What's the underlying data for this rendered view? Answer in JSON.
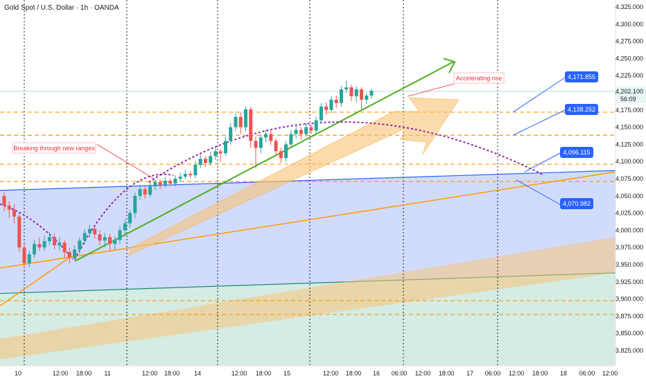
{
  "header": {
    "title": "Gold Spot / U.S. Dollar · 1h · OANDA"
  },
  "colors": {
    "up": "#26a69a",
    "down": "#ef5350",
    "blue_zone": "#c9d6fb",
    "green_zone": "#d5ece4",
    "trend_green": "#4caf1e",
    "orange": "#ff9800",
    "arc": "#8e24aa",
    "label_blue": "#2962ff",
    "annotation_red": "#e8323c"
  },
  "chart_data": {
    "type": "candlestick",
    "title": "Gold Spot / U.S. Dollar · 1h · OANDA",
    "ylim": [
      3805,
      4335
    ],
    "y_ticks": [
      "4,325.000",
      "4,300.000",
      "4,275.000",
      "4,250.000",
      "4,225.000",
      "4,200.000",
      "4,175.000",
      "4,150.000",
      "4,125.000",
      "4,100.000",
      "4,075.000",
      "4,050.000",
      "4,025.000",
      "4,000.000",
      "3,975.000",
      "3,950.000",
      "3,925.000",
      "3,900.000",
      "3,875.000",
      "3,850.000",
      "3,825.000"
    ],
    "x_ticks": [
      "10",
      "12:00",
      "18:00",
      "11",
      "12:00",
      "18:00",
      "14",
      "12:00",
      "18:00",
      "15",
      "12:00",
      "18:00",
      "16",
      "06:00",
      "12:00",
      "18:00",
      "17",
      "06:00",
      "12:00",
      "18:00",
      "18",
      "06:00",
      "12:00"
    ],
    "current_price": {
      "value": "4,202.100",
      "countdown": "56:09"
    },
    "candles": [
      {
        "o": 4050,
        "c": 4036,
        "h": 4056,
        "l": 4028
      },
      {
        "o": 4036,
        "c": 4030,
        "h": 4042,
        "l": 4018
      },
      {
        "o": 4030,
        "c": 4020,
        "h": 4038,
        "l": 4010
      },
      {
        "o": 4020,
        "c": 3975,
        "h": 4024,
        "l": 3968
      },
      {
        "o": 3975,
        "c": 3952,
        "h": 3980,
        "l": 3944
      },
      {
        "o": 3952,
        "c": 3965,
        "h": 3970,
        "l": 3946
      },
      {
        "o": 3965,
        "c": 3980,
        "h": 3986,
        "l": 3960
      },
      {
        "o": 3980,
        "c": 3975,
        "h": 3990,
        "l": 3970
      },
      {
        "o": 3975,
        "c": 3984,
        "h": 3992,
        "l": 3970
      },
      {
        "o": 3984,
        "c": 3990,
        "h": 3998,
        "l": 3978
      },
      {
        "o": 3990,
        "c": 3978,
        "h": 3995,
        "l": 3972
      },
      {
        "o": 3978,
        "c": 3982,
        "h": 3990,
        "l": 3970
      },
      {
        "o": 3982,
        "c": 3968,
        "h": 3986,
        "l": 3960
      },
      {
        "o": 3968,
        "c": 3960,
        "h": 3975,
        "l": 3952
      },
      {
        "o": 3960,
        "c": 3972,
        "h": 3978,
        "l": 3956
      },
      {
        "o": 3972,
        "c": 3985,
        "h": 3990,
        "l": 3966
      },
      {
        "o": 3985,
        "c": 3996,
        "h": 4002,
        "l": 3980
      },
      {
        "o": 3996,
        "c": 4002,
        "h": 4008,
        "l": 3990
      },
      {
        "o": 4002,
        "c": 3994,
        "h": 4006,
        "l": 3988
      },
      {
        "o": 3994,
        "c": 3985,
        "h": 4000,
        "l": 3978
      },
      {
        "o": 3985,
        "c": 3990,
        "h": 3996,
        "l": 3975
      },
      {
        "o": 3990,
        "c": 3980,
        "h": 3995,
        "l": 3970
      },
      {
        "o": 3980,
        "c": 3986,
        "h": 3992,
        "l": 3972
      },
      {
        "o": 3986,
        "c": 4000,
        "h": 4006,
        "l": 3980
      },
      {
        "o": 4000,
        "c": 4010,
        "h": 4016,
        "l": 3994
      },
      {
        "o": 4010,
        "c": 4025,
        "h": 4030,
        "l": 4004
      },
      {
        "o": 4025,
        "c": 4050,
        "h": 4055,
        "l": 4018
      },
      {
        "o": 4050,
        "c": 4060,
        "h": 4066,
        "l": 4044
      },
      {
        "o": 4060,
        "c": 4052,
        "h": 4064,
        "l": 4046
      },
      {
        "o": 4052,
        "c": 4064,
        "h": 4070,
        "l": 4048
      },
      {
        "o": 4064,
        "c": 4070,
        "h": 4074,
        "l": 4058
      },
      {
        "o": 4070,
        "c": 4066,
        "h": 4074,
        "l": 4060
      },
      {
        "o": 4066,
        "c": 4072,
        "h": 4078,
        "l": 4062
      },
      {
        "o": 4072,
        "c": 4068,
        "h": 4076,
        "l": 4064
      },
      {
        "o": 4068,
        "c": 4075,
        "h": 4080,
        "l": 4064
      },
      {
        "o": 4075,
        "c": 4078,
        "h": 4084,
        "l": 4070
      },
      {
        "o": 4078,
        "c": 4082,
        "h": 4088,
        "l": 4074
      },
      {
        "o": 4082,
        "c": 4080,
        "h": 4086,
        "l": 4076
      },
      {
        "o": 4080,
        "c": 4095,
        "h": 4100,
        "l": 4076
      },
      {
        "o": 4095,
        "c": 4104,
        "h": 4110,
        "l": 4090
      },
      {
        "o": 4104,
        "c": 4098,
        "h": 4108,
        "l": 4092
      },
      {
        "o": 4098,
        "c": 4108,
        "h": 4114,
        "l": 4094
      },
      {
        "o": 4108,
        "c": 4115,
        "h": 4120,
        "l": 4102
      },
      {
        "o": 4115,
        "c": 4112,
        "h": 4118,
        "l": 4100
      },
      {
        "o": 4112,
        "c": 4130,
        "h": 4136,
        "l": 4108
      },
      {
        "o": 4130,
        "c": 4150,
        "h": 4156,
        "l": 4124
      },
      {
        "o": 4150,
        "c": 4165,
        "h": 4170,
        "l": 4144
      },
      {
        "o": 4165,
        "c": 4150,
        "h": 4172,
        "l": 4140
      },
      {
        "o": 4150,
        "c": 4176,
        "h": 4180,
        "l": 4144
      },
      {
        "o": 4176,
        "c": 4130,
        "h": 4180,
        "l": 4120
      },
      {
        "o": 4130,
        "c": 4120,
        "h": 4136,
        "l": 4090
      },
      {
        "o": 4120,
        "c": 4135,
        "h": 4140,
        "l": 4112
      },
      {
        "o": 4135,
        "c": 4140,
        "h": 4146,
        "l": 4128
      },
      {
        "o": 4140,
        "c": 4130,
        "h": 4146,
        "l": 4124
      },
      {
        "o": 4130,
        "c": 4115,
        "h": 4134,
        "l": 4108
      },
      {
        "o": 4115,
        "c": 4105,
        "h": 4120,
        "l": 4098
      },
      {
        "o": 4105,
        "c": 4125,
        "h": 4130,
        "l": 4100
      },
      {
        "o": 4125,
        "c": 4140,
        "h": 4146,
        "l": 4120
      },
      {
        "o": 4140,
        "c": 4146,
        "h": 4152,
        "l": 4134
      },
      {
        "o": 4146,
        "c": 4140,
        "h": 4150,
        "l": 4132
      },
      {
        "o": 4140,
        "c": 4150,
        "h": 4156,
        "l": 4136
      },
      {
        "o": 4150,
        "c": 4145,
        "h": 4154,
        "l": 4140
      },
      {
        "o": 4145,
        "c": 4160,
        "h": 4165,
        "l": 4140
      },
      {
        "o": 4160,
        "c": 4180,
        "h": 4185,
        "l": 4155
      },
      {
        "o": 4180,
        "c": 4175,
        "h": 4186,
        "l": 4168
      },
      {
        "o": 4175,
        "c": 4190,
        "h": 4195,
        "l": 4170
      },
      {
        "o": 4190,
        "c": 4185,
        "h": 4196,
        "l": 4178
      },
      {
        "o": 4185,
        "c": 4205,
        "h": 4210,
        "l": 4180
      },
      {
        "o": 4205,
        "c": 4208,
        "h": 4218,
        "l": 4200
      },
      {
        "o": 4208,
        "c": 4195,
        "h": 4212,
        "l": 4188
      },
      {
        "o": 4195,
        "c": 4205,
        "h": 4210,
        "l": 4186
      },
      {
        "o": 4205,
        "c": 4190,
        "h": 4208,
        "l": 4175
      },
      {
        "o": 4190,
        "c": 4196,
        "h": 4200,
        "l": 4184
      },
      {
        "o": 4196,
        "c": 4203,
        "h": 4206,
        "l": 4192
      }
    ],
    "horizontal_levels": [
      4171.855,
      4138.252,
      4096.115,
      4070.982,
      3897.5,
      3877.5
    ],
    "level_labels": [
      "4,171.855",
      "4,138.252",
      "4,096.115",
      "4,070.982"
    ],
    "annotations": [
      "Breaking through new ranges",
      "Accelerating rise"
    ],
    "grid": false,
    "legend": "none"
  }
}
